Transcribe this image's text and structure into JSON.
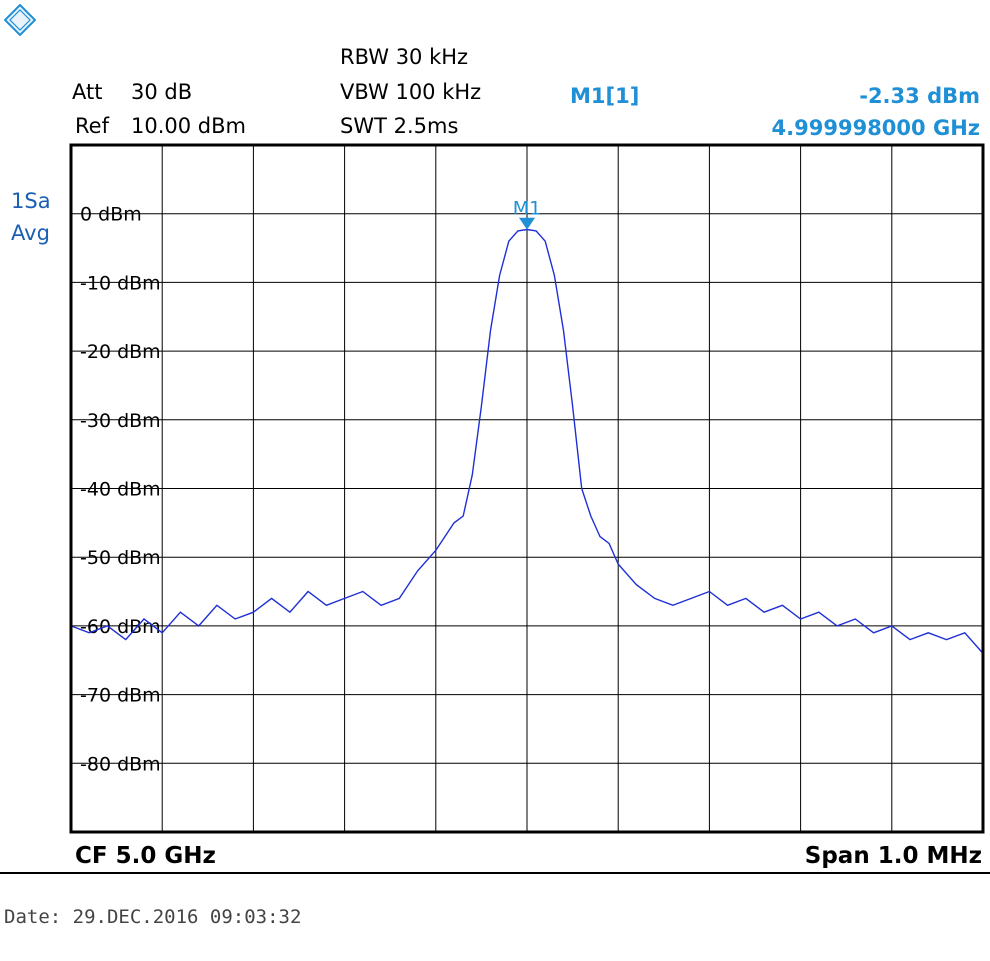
{
  "header": {
    "att_label": "Att",
    "att_value": "30 dB",
    "ref_label": "Ref",
    "ref_value": "10.00 dBm",
    "rbw": "RBW 30 kHz",
    "vbw": "VBW 100 kHz",
    "swt": "SWT 2.5ms",
    "marker_name": "M1[1]",
    "marker_level": "-2.33 dBm",
    "marker_freq": "4.999998000 GHz"
  },
  "trace_mode": {
    "line1": "1Sa",
    "line2": "Avg"
  },
  "footer": {
    "cf": "CF 5.0 GHz",
    "span": "Span 1.0 MHz",
    "date": "Date: 29.DEC.2016  09:03:32"
  },
  "colors": {
    "trace": "#1f2fd6",
    "marker": "#1f8fd6",
    "grid": "#000000",
    "trace_mode_text": "#1a5fb4"
  },
  "chart_data": {
    "type": "line",
    "x_unit": "MHz offset from CF",
    "xlim": [
      -0.5,
      0.5
    ],
    "ylim": [
      -90,
      10
    ],
    "y_ticks": [
      0,
      -10,
      -20,
      -30,
      -40,
      -50,
      -60,
      -70,
      -80
    ],
    "y_tick_labels": [
      "0 dBm",
      "-10 dBm",
      "-20 dBm",
      "-30 dBm",
      "-40 dBm",
      "-50 dBm",
      "-60 dBm",
      "-70 dBm",
      "-80 dBm"
    ],
    "grid": true,
    "marker": {
      "label": "M1",
      "x": 0.0,
      "y": -2.33
    },
    "series": [
      {
        "x": [
          -0.5,
          -0.48,
          -0.46,
          -0.44,
          -0.42,
          -0.4,
          -0.38,
          -0.36,
          -0.34,
          -0.32,
          -0.3,
          -0.28,
          -0.26,
          -0.24,
          -0.22,
          -0.2,
          -0.18,
          -0.16,
          -0.14,
          -0.12,
          -0.1,
          -0.09,
          -0.08,
          -0.07,
          -0.06,
          -0.05,
          -0.04,
          -0.03,
          -0.02,
          -0.01,
          0.0,
          0.01,
          0.02,
          0.03,
          0.04,
          0.05,
          0.06,
          0.07,
          0.08,
          0.09,
          0.1,
          0.12,
          0.14,
          0.16,
          0.18,
          0.2,
          0.22,
          0.24,
          0.26,
          0.28,
          0.3,
          0.32,
          0.34,
          0.36,
          0.38,
          0.4,
          0.42,
          0.44,
          0.46,
          0.48,
          0.5
        ],
        "y": [
          -60,
          -61,
          -60,
          -62,
          -59,
          -61,
          -58,
          -60,
          -57,
          -59,
          -58,
          -56,
          -58,
          -55,
          -57,
          -56,
          -55,
          -57,
          -56,
          -52,
          -49,
          -47,
          -45,
          -44,
          -38,
          -28,
          -17,
          -9,
          -4,
          -2.5,
          -2.3,
          -2.5,
          -4,
          -9,
          -17,
          -28,
          -40,
          -44,
          -47,
          -48,
          -51,
          -54,
          -56,
          -57,
          -56,
          -55,
          -57,
          -56,
          -58,
          -57,
          -59,
          -58,
          -60,
          -59,
          -61,
          -60,
          -62,
          -61,
          -62,
          -61,
          -64
        ]
      }
    ]
  }
}
